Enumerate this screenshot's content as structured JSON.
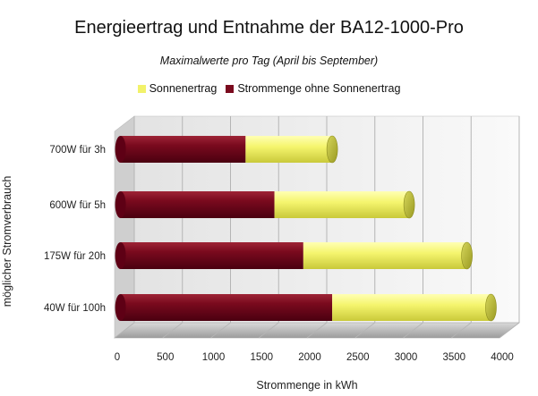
{
  "chart_data": {
    "type": "bar",
    "orientation": "horizontal",
    "stacked": true,
    "title": "Energieertrag und Entnahme der BA12-1000-Pro",
    "subtitle": "Maximalwerte pro Tag (April bis September)",
    "xlabel": "Strommenge in kWh",
    "ylabel": "möglicher Stromverbrauch",
    "xlim": [
      0,
      4000
    ],
    "xticks": [
      0,
      500,
      1000,
      1500,
      2000,
      2500,
      3000,
      3500,
      4000
    ],
    "xtick_labels": [
      "0",
      "500",
      "1000",
      "1500",
      "2000",
      "2500",
      "3000",
      "3500",
      "4000"
    ],
    "grid": true,
    "legend_position": "top",
    "categories": [
      "700W für 3h",
      "600W für 5h",
      "175W für 20h",
      "40W für 100h"
    ],
    "series": [
      {
        "name": "Strommenge ohne Sonnenertrag",
        "color": "#7a0a1e",
        "values": [
          1300,
          1600,
          1900,
          2200
        ]
      },
      {
        "name": "Sonnenertrag",
        "color": "#f2f26a",
        "values": [
          900,
          1400,
          1700,
          1650
        ]
      }
    ],
    "legend_order": [
      1,
      0
    ]
  }
}
